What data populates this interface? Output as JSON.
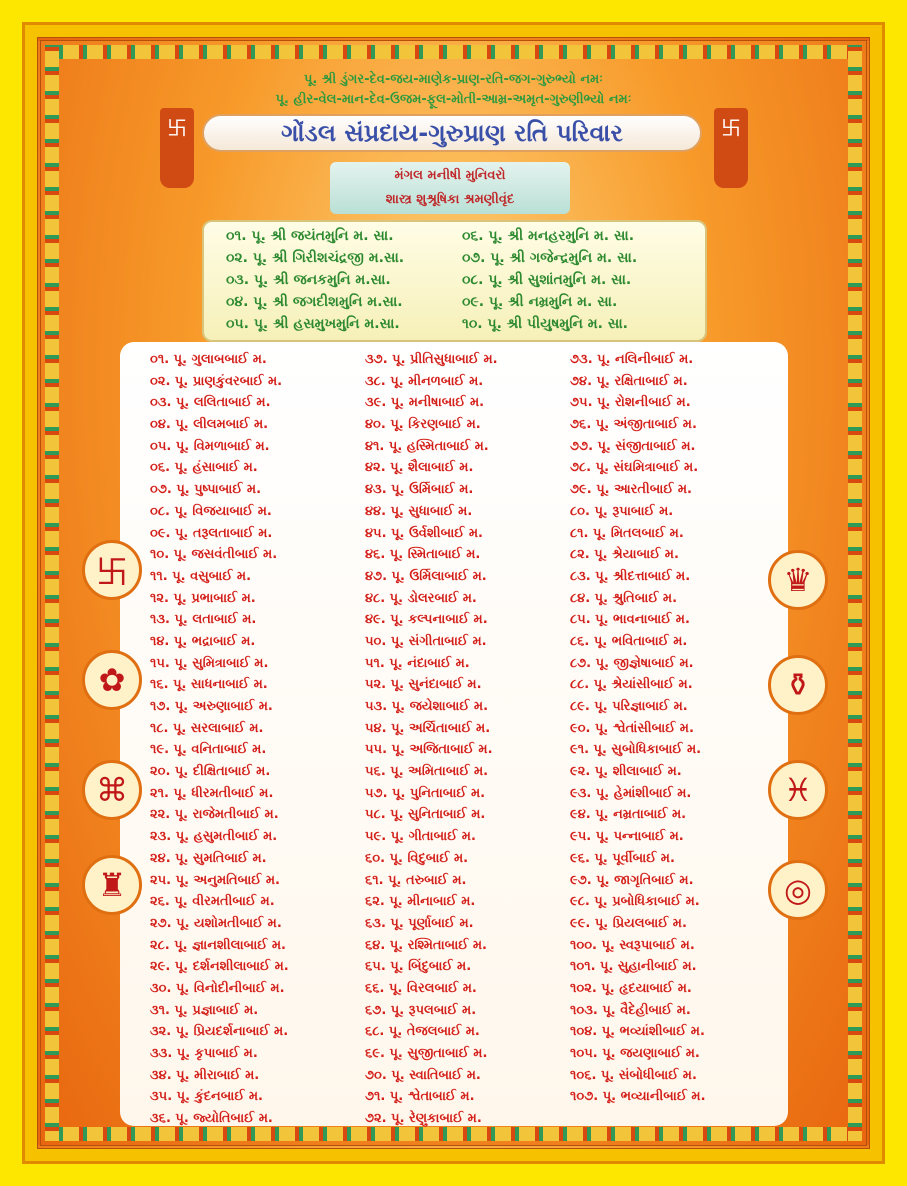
{
  "header": {
    "line1": "પૂ. શ્રી ડુંગર-દેવ-જય-માણેક-પ્રાણ-રતિ-જગ-ગુરુભ્યો નમઃ",
    "line2": "પૂ. હીર-વેલ-માન-દેવ-ઉજમ-ફૂલ-મોતી-આમ્ર-અમૃત-ગુરુણીભ્યો નમઃ",
    "title": "ગોંડલ સંપ્રદાય-ગુરુપ્રાણ રતિ પરિવાર",
    "sub1": "મંગલ મનીષી મુનિવરો",
    "sub2": "શાસ્ત્ર શુશ્રૂષિકા શ્રમણીવૃંદ"
  },
  "munis": [
    "૦૧. પૂ. શ્રી જયંતમુનિ મ. સા.",
    "૦૨. પૂ. શ્રી ગિરીશચંદ્રજી મ.સા.",
    "૦૩. પૂ. શ્રી જનકમુનિ મ.સા.",
    "૦૪. પૂ. શ્રી જગદીશમુનિ મ.સા.",
    "૦૫. પૂ. શ્રી હસમુખમુનિ મ.સા.",
    "૦૬. પૂ. શ્રી મનહરમુનિ મ. સા.",
    "૦૭. પૂ. શ્રી ગજેન્દ્રમુનિ મ. સા.",
    "૦૮. પૂ. શ્રી સુશાંતમુનિ મ. સા.",
    "૦૯. પૂ. શ્રી નમ્રમુનિ મ. સા.",
    "૧૦. પૂ. શ્રી પીયુષમુનિ મ. સા."
  ],
  "sadhvis": [
    [
      "૦૧. પૂ. ગુલાબબાઈ મ.",
      "૦૨. પૂ. પ્રાણકુંવરબાઈ મ.",
      "૦૩. પૂ. લલિતાબાઈ મ.",
      "૦૪. પૂ. લીલમબાઈ મ.",
      "૦૫. પૂ. વિમળાબાઈ મ.",
      "૦૬. પૂ. હંસાબાઈ મ.",
      "૦૭. પૂ. પુષ્પાબાઈ મ.",
      "૦૮. પૂ. વિજયાબાઈ મ.",
      "૦૯. પૂ. તરૂલતાબાઈ મ.",
      "૧૦. પૂ. જસવંતીબાઈ મ.",
      "૧૧. પૂ. વસુબાઈ મ.",
      "૧૨. પૂ. પ્રભાબાઈ મ.",
      "૧૩. પૂ. લતાબાઈ મ.",
      "૧૪. પૂ. ભદ્રાબાઈ મ.",
      "૧૫. પૂ. સુમિત્રાબાઈ મ.",
      "૧૬. પૂ. સાધનાબાઈ મ.",
      "૧૭. પૂ. અરુણાબાઈ મ.",
      "૧૮. પૂ. સરલાબાઈ મ.",
      "૧૯. પૂ. વનિતાબાઈ મ.",
      "૨૦. પૂ. દીક્ષિતાબાઈ મ.",
      "૨૧. પૂ. ધીરમતીબાઈ મ.",
      "૨૨. પૂ. રાજેમતીબાઈ મ.",
      "૨૩. પૂ. હસુમતીબાઈ મ.",
      "૨૪. પૂ. સુમતિબાઈ મ.",
      "૨૫. પૂ. અનુમતિબાઈ મ.",
      "૨૬. પૂ. વીરમતીબાઈ મ.",
      "૨૭. પૂ. યશોમતીબાઈ મ.",
      "૨૮. પૂ. જ્ઞાનશીલાબાઈ મ.",
      "૨૯. પૂ. દર્શનશીલાબાઈ મ.",
      "૩૦. પૂ. વિનોદીનીબાઈ મ.",
      "૩૧. પૂ. પ્રજ્ઞાબાઈ મ.",
      "૩૨. પૂ. પ્રિયદર્શનાબાઈ મ.",
      "૩૩. પૂ. કૃપાબાઈ મ.",
      "૩૪. પૂ. મીરાબાઈ મ.",
      "૩૫. પૂ. કુંદનબાઈ મ.",
      "૩૬. પૂ. જ્યોતિબાઈ મ."
    ],
    [
      "૩૭. પૂ. પ્રીતિસુધાબાઈ મ.",
      "૩૮. પૂ. મીનળબાઈ મ.",
      "૩૯. પૂ. મનીષાબાઈ મ.",
      "૪૦. પૂ. કિરણબાઈ મ.",
      "૪૧. પૂ. હસ્મિતાબાઈ મ.",
      "૪૨. પૂ. શૈલાબાઈ મ.",
      "૪૩. પૂ. ઉર્મિબાઈ મ.",
      "૪૪. પૂ. સુધાબાઈ મ.",
      "૪૫. પૂ. ઉર્વશીબાઈ મ.",
      "૪૬. પૂ. સ્મિતાબાઈ મ.",
      "૪૭. પૂ. ઉર્મિલાબાઈ મ.",
      "૪૮. પૂ. ડોલરબાઈ મ.",
      "૪૯. પૂ. કલ્પનાબાઈ મ.",
      "૫૦. પૂ. સંગીતાબાઈ મ.",
      "૫૧. પૂ. નંદાબાઈ મ.",
      "૫૨. પૂ. સુનંદાબાઈ મ.",
      "૫૩. પૂ. જયેશાબાઈ મ.",
      "૫૪. પૂ. અર્ચિતાબાઈ મ.",
      "૫૫. પૂ. અજિતાબાઈ મ.",
      "૫૬. પૂ. અમિતાબાઈ મ.",
      "૫૭. પૂ. પુનિતાબાઈ મ.",
      "૫૮. પૂ. સુનિતાબાઈ મ.",
      "૫૯. પૂ. ગીતાબાઈ મ.",
      "૬૦. પૂ. વિદુબાઈ મ.",
      "૬૧. પૂ. તરુબાઈ મ.",
      "૬૨. પૂ. મીનાબાઈ મ.",
      "૬૩. પૂ. પૂર્ણાબાઈ મ.",
      "૬૪. પૂ. રશ્મિતાબાઈ મ.",
      "૬૫. પૂ. બિંદુબાઈ મ.",
      "૬૬. પૂ. વિરલબાઈ મ.",
      "૬૭. પૂ. રૂપલબાઈ મ.",
      "૬૮. પૂ. તેજલબાઈ મ.",
      "૬૯. પૂ. સુજીતાબાઈ મ.",
      "૭૦. પૂ. સ્વાતિબાઈ મ.",
      "૭૧. પૂ. શ્વેતાબાઈ મ.",
      "૭૨. પૂ. રેણુકાબાઈ મ."
    ],
    [
      "૭૩. પૂ. નલિનીબાઈ મ.",
      "૭૪. પૂ. રક્ષિતાબાઈ મ.",
      "૭૫. પૂ. રોશનીબાઈ મ.",
      "૭૬. પૂ. અંજીતાબાઈ મ.",
      "૭૭. પૂ. સંજીતાબાઈ મ.",
      "૭૮. પૂ. સંઘમિત્રાબાઈ મ.",
      "૭૯. પૂ. આરતીબાઈ મ.",
      "૮૦. પૂ. રૂપાબાઈ મ.",
      "૮૧. પૂ. મિતલબાઈ મ.",
      "૮૨. પૂ. શ્રેયાબાઈ મ.",
      "૮૩. પૂ. શ્રીદત્તાબાઈ મ.",
      "૮૪. પૂ. શ્રુતિબાઈ મ.",
      "૮૫. પૂ. ભાવનાબાઈ મ.",
      "૮૬. પૂ. ભવિતાબાઈ મ.",
      "૮૭. પૂ. જીજ્ઞેષાબાઈ મ.",
      "૮૮. પૂ. શ્રેયાંસીબાઈ મ.",
      "૮૯. પૂ. પરિજ્ઞાબાઈ મ.",
      "૯૦. પૂ. શ્વેતાંસીબાઈ મ.",
      "૯૧. પૂ. સુબોધિકાબાઈ મ.",
      "૯૨. પૂ. શીલાબાઈ મ.",
      "૯૩. પૂ. હેમાંશીબાઈ મ.",
      "૯૪. પૂ. નમ્રતાબાઈ મ.",
      "૯૫. પૂ. પન્નાબાઈ મ.",
      "૯૬. પૂ. પૂર્વીબાઈ મ.",
      "૯૭. પૂ. જાગૃતિબાઈ મ.",
      "૯૮. પૂ. પ્રબોધિકાબાઈ મ.",
      "૯૯. પૂ. પ્રિયલબાઈ મ.",
      "૧૦૦. પૂ. સ્વરૂપાબાઈ મ.",
      "૧૦૧. પૂ. સુહાનીબાઈ મ.",
      "૧૦૨. પૂ. હૃદયાબાઈ મ.",
      "૧૦૩. પૂ. વૈદેહીબાઈ મ.",
      "૧૦૪. પૂ. ભવ્યાંશીબાઈ મ.",
      "૧૦૫. પૂ. જયણાબાઈ મ.",
      "૧૦૬. પૂ. સંબોધીબાઈ મ.",
      "૧૦૭. પૂ. ભવ્યાનીબાઈ મ."
    ]
  ],
  "symbols": {
    "left": [
      "swastika-icon",
      "nandyavarta-icon",
      "shrivatsa-icon",
      "bhadrasana-icon"
    ],
    "right": [
      "throne-icon",
      "kalash-icon",
      "fish-pair-icon",
      "mirror-icon"
    ]
  },
  "colors": {
    "muni_text": "#2e8a30",
    "sadhvi_text": "#d4201a",
    "title_text": "#3a4fa8",
    "background": "#f79a2a",
    "border": "#fde700"
  }
}
